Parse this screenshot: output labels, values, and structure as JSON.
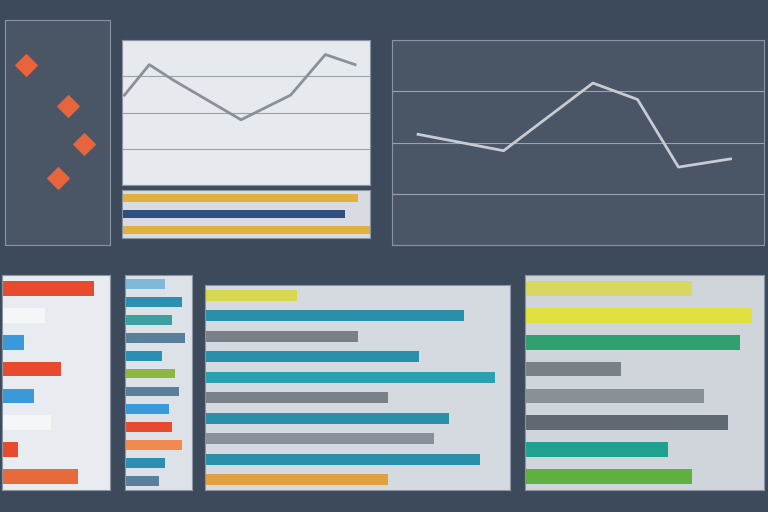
{
  "chart_data": [
    {
      "type": "scatter",
      "x": [
        20,
        60,
        75,
        50
      ],
      "values": [
        80,
        62,
        45,
        30
      ],
      "xlim": [
        0,
        100
      ],
      "ylim": [
        0,
        100
      ],
      "color": "#e8643c",
      "marker": "diamond",
      "grid": false,
      "tick_labels": false
    },
    {
      "type": "line",
      "x": [
        1,
        11,
        21,
        48,
        68,
        82,
        94
      ],
      "values": [
        62,
        83,
        72,
        45,
        62,
        90,
        83
      ],
      "xlim": [
        0,
        100
      ],
      "ylim": [
        0,
        100
      ],
      "yticks": [
        0,
        25,
        50,
        75,
        100
      ],
      "color": "#8a9099",
      "line_style": "solid",
      "grid": true,
      "tick_labels": false
    },
    {
      "type": "bar",
      "orientation": "horizontal",
      "categories": [
        null,
        null,
        null
      ],
      "values": [
        95,
        90,
        100
      ],
      "colors": [
        "#e0b040",
        "#2f4f7f",
        "#e0b040"
      ],
      "xlim": [
        0,
        100
      ],
      "grid": false,
      "tick_labels": false
    },
    {
      "type": "line",
      "x": [
        7,
        30,
        54,
        66,
        77,
        91
      ],
      "values": [
        54,
        46,
        79,
        71,
        38,
        42
      ],
      "xlim": [
        0,
        100
      ],
      "ylim": [
        0,
        100
      ],
      "yticks": [
        0,
        25,
        50,
        75,
        100
      ],
      "color": "#c8ccd2",
      "line_style": "solid",
      "grid": true,
      "tick_labels": false
    },
    {
      "type": "bar",
      "orientation": "horizontal",
      "categories": [
        null,
        null,
        null,
        null,
        null,
        null,
        null,
        null
      ],
      "values": [
        85,
        40,
        20,
        55,
        30,
        45,
        15,
        70
      ],
      "colors": [
        "#e84a2e",
        "#f4f6f8",
        "#3a9ad9",
        "#e84a2e",
        "#3a9ad9",
        "#f4f6f8",
        "#e84a2e",
        "#e86a3a"
      ],
      "xlim": [
        0,
        100
      ],
      "grid": false,
      "tick_labels": false
    },
    {
      "type": "bar",
      "orientation": "horizontal",
      "categories": [
        null,
        null,
        null,
        null,
        null,
        null,
        null,
        null,
        null,
        null,
        null,
        null
      ],
      "values": [
        60,
        85,
        70,
        90,
        55,
        75,
        80,
        65,
        70,
        85,
        60,
        50
      ],
      "colors": [
        "#7fb8d8",
        "#2a8fb0",
        "#3aa0a0",
        "#5a7f9a",
        "#2a8fb0",
        "#8ab840",
        "#5a7f9a",
        "#3a9ad9",
        "#e84a2e",
        "#f08a50",
        "#2a8fb0",
        "#5a7f9a"
      ],
      "xlim": [
        0,
        100
      ],
      "grid": false,
      "tick_labels": false
    },
    {
      "type": "bar",
      "orientation": "horizontal",
      "categories": [
        null,
        null,
        null,
        null,
        null,
        null,
        null,
        null,
        null,
        null
      ],
      "values": [
        30,
        85,
        50,
        70,
        95,
        60,
        80,
        75,
        90,
        60
      ],
      "colors": [
        "#d8d850",
        "#2a8fa8",
        "#7a8088",
        "#2a8fa8",
        "#2aa0b0",
        "#7a8088",
        "#2a8fa8",
        "#8a9098",
        "#2a8fa8",
        "#e0a040"
      ],
      "xlim": [
        0,
        100
      ],
      "grid": false,
      "tick_labels": false
    },
    {
      "type": "bar",
      "orientation": "horizontal",
      "categories": [
        null,
        null,
        null,
        null,
        null,
        null,
        null,
        null
      ],
      "values": [
        70,
        95,
        90,
        40,
        75,
        85,
        60,
        70
      ],
      "colors": [
        "#d8d860",
        "#e0e040",
        "#30a070",
        "#7a8088",
        "#8a9098",
        "#606870",
        "#20a090",
        "#60b040"
      ],
      "xlim": [
        0,
        100
      ],
      "grid": false,
      "tick_labels": false
    }
  ]
}
